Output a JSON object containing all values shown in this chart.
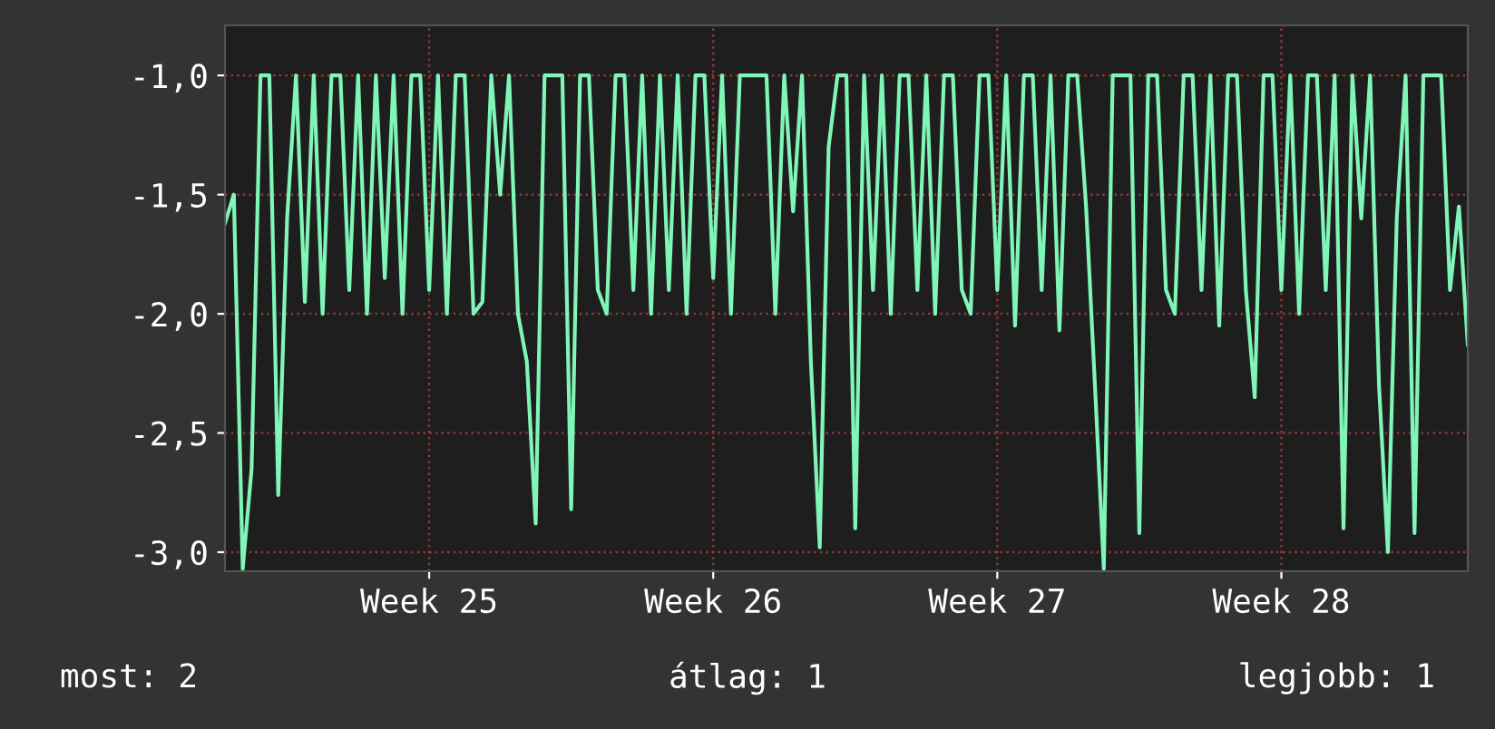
{
  "chart_data": {
    "type": "line",
    "categories": [
      null,
      null,
      null,
      null,
      null,
      null,
      null,
      null,
      null,
      null,
      null,
      null,
      null,
      null,
      null,
      null,
      null,
      null,
      null,
      null,
      null,
      null,
      null,
      "Week 25",
      null,
      null,
      null,
      null,
      null,
      null,
      null,
      null,
      null,
      null,
      null,
      null,
      null,
      null,
      null,
      null,
      null,
      null,
      null,
      null,
      null,
      null,
      null,
      null,
      null,
      null,
      null,
      null,
      null,
      null,
      null,
      "Week 26",
      null,
      null,
      null,
      null,
      null,
      null,
      null,
      null,
      null,
      null,
      null,
      null,
      null,
      null,
      null,
      null,
      null,
      null,
      null,
      null,
      null,
      null,
      null,
      null,
      null,
      null,
      null,
      null,
      null,
      null,
      null,
      "Week 27",
      null,
      null,
      null,
      null,
      null,
      null,
      null,
      null,
      null,
      null,
      null,
      null,
      null,
      null,
      null,
      null,
      null,
      null,
      null,
      null,
      null,
      null,
      null,
      null,
      null,
      null,
      null,
      null,
      null,
      null,
      null,
      "Week 28",
      null,
      null,
      null,
      null,
      null,
      null,
      null,
      null,
      null,
      null,
      null,
      null,
      null,
      null,
      null,
      null,
      null,
      null,
      null,
      null,
      null
    ],
    "series": [
      {
        "color": "#80f5b8",
        "values": [
          -1.62,
          -1.5,
          -3.07,
          -2.65,
          -1.0,
          -1.0,
          -2.76,
          -1.6,
          -1.0,
          -1.95,
          -1.0,
          -2.0,
          -1.0,
          -1.0,
          -1.9,
          -1.0,
          -2.0,
          -1.0,
          -1.85,
          -1.0,
          -2.0,
          -1.0,
          -1.0,
          -1.9,
          -1.0,
          -2.0,
          -1.0,
          -1.0,
          -2.0,
          -1.95,
          -1.0,
          -1.5,
          -1.0,
          -2.0,
          -2.2,
          -2.88,
          -1.0,
          -1.0,
          -1.0,
          -2.82,
          -1.0,
          -1.0,
          -1.9,
          -2.0,
          -1.0,
          -1.0,
          -1.9,
          -1.0,
          -2.0,
          -1.0,
          -1.9,
          -1.0,
          -2.0,
          -1.0,
          -1.0,
          -1.85,
          -1.0,
          -2.0,
          -1.0,
          -1.0,
          -1.0,
          -1.0,
          -2.0,
          -1.0,
          -1.57,
          -1.0,
          -2.2,
          -2.98,
          -1.3,
          -1.0,
          -1.0,
          -2.9,
          -1.0,
          -1.9,
          -1.0,
          -2.0,
          -1.0,
          -1.0,
          -1.9,
          -1.0,
          -2.0,
          -1.0,
          -1.0,
          -1.9,
          -2.0,
          -1.0,
          -1.0,
          -1.9,
          -1.0,
          -2.05,
          -1.0,
          -1.0,
          -1.9,
          -1.0,
          -2.07,
          -1.0,
          -1.0,
          -1.55,
          -2.3,
          -3.07,
          -1.0,
          -1.0,
          -1.0,
          -2.92,
          -1.0,
          -1.0,
          -1.9,
          -2.0,
          -1.0,
          -1.0,
          -1.9,
          -1.0,
          -2.05,
          -1.0,
          -1.0,
          -1.9,
          -2.35,
          -1.0,
          -1.0,
          -1.9,
          -1.0,
          -2.0,
          -1.0,
          -1.0,
          -1.9,
          -1.0,
          -2.9,
          -1.0,
          -1.6,
          -1.0,
          -2.3,
          -3.0,
          -1.6,
          -1.0,
          -2.92,
          -1.0,
          -1.0,
          -1.0,
          -1.9,
          -1.55,
          -2.13
        ]
      }
    ],
    "ylim": [
      -3.08,
      -0.79
    ],
    "yticks": [
      {
        "value": -3.0,
        "label": "-3,0"
      },
      {
        "value": -2.5,
        "label": "-2,5"
      },
      {
        "value": -2.0,
        "label": "-2,0"
      },
      {
        "value": -1.5,
        "label": "-1,5"
      },
      {
        "value": -1.0,
        "label": "-1,0"
      }
    ],
    "grid": true,
    "annotations": [
      "most: 2",
      "átlag: 1",
      "legjobb: 1"
    ]
  }
}
